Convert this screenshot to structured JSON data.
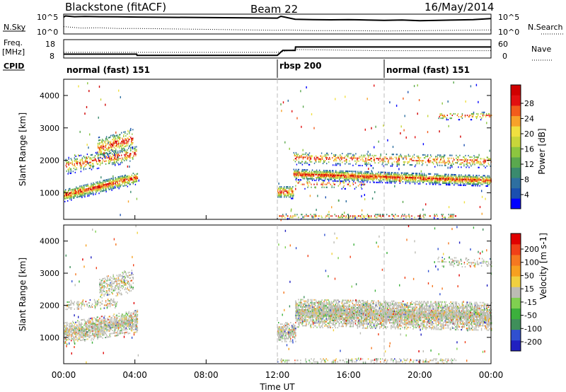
{
  "header": {
    "station": "Blackstone (fitACF)",
    "beam": "Beam 22",
    "date": "16/May/2014"
  },
  "top_panels": {
    "nsky_label": "N.Sky",
    "nsearch_label": "N.Search",
    "noise_ticks": [
      "10^5",
      "10^0"
    ],
    "freq_label": "Freq.",
    "freq_unit": "[MHz]",
    "freq_ticks": [
      "8",
      "18"
    ],
    "nave_ticks": [
      "60",
      "0"
    ],
    "nave_label": "Nave",
    "cpid_label": "CPID",
    "cpid_segments": [
      {
        "label": "normal (fast) 151",
        "start_h": 0,
        "end_h": 12
      },
      {
        "label": "rbsp 200",
        "start_h": 12,
        "end_h": 18
      },
      {
        "label": "normal (fast) 151",
        "start_h": 18,
        "end_h": 24
      }
    ],
    "noise_sky_trace": [
      [
        0,
        4.6
      ],
      [
        0.1,
        4.9
      ],
      [
        0.6,
        4.7
      ],
      [
        1.2,
        4.75
      ],
      [
        2,
        4.7
      ],
      [
        3,
        4.65
      ],
      [
        4.1,
        4.6
      ],
      [
        12,
        4.3
      ],
      [
        12.2,
        4.8
      ],
      [
        13,
        4.0
      ],
      [
        14,
        3.9
      ],
      [
        15,
        3.85
      ],
      [
        16,
        3.9
      ],
      [
        17,
        3.8
      ],
      [
        18,
        3.7
      ],
      [
        19,
        3.8
      ],
      [
        20,
        3.6
      ],
      [
        21,
        3.7
      ],
      [
        22,
        3.8
      ],
      [
        23,
        3.9
      ],
      [
        24,
        4.2
      ]
    ],
    "noise_search_trace": [
      [
        0,
        2.0
      ],
      [
        1,
        1.6
      ],
      [
        2,
        1.7
      ],
      [
        3,
        1.5
      ],
      [
        4.1,
        1.5
      ],
      [
        12,
        1.0
      ],
      [
        12.5,
        1.1
      ],
      [
        14,
        0.9
      ],
      [
        16,
        0.9
      ],
      [
        18,
        0.8
      ],
      [
        20,
        0.9
      ],
      [
        22,
        1.0
      ],
      [
        24,
        1.1
      ]
    ],
    "freq_trace": [
      [
        0,
        10.3
      ],
      [
        4.1,
        10.3
      ],
      [
        4.12,
        9.6
      ],
      [
        12,
        9.6
      ],
      [
        12.3,
        12.5
      ],
      [
        13,
        12.5
      ],
      [
        13.02,
        14.5
      ],
      [
        24,
        14.5
      ]
    ],
    "nave_trace": [
      [
        0,
        20
      ],
      [
        4.1,
        20
      ],
      [
        12,
        20
      ],
      [
        13,
        30
      ],
      [
        18,
        26
      ],
      [
        24,
        26
      ]
    ]
  },
  "chart_data": [
    {
      "type": "heatmap",
      "title": "",
      "ylabel": "Slant Range [km]",
      "xlabel": "",
      "ylim": [
        180,
        4500
      ],
      "yticks": [
        1000,
        2000,
        3000,
        4000
      ],
      "xlim": [
        0,
        24
      ],
      "colorbar": {
        "label": "Power [dB]",
        "ticks": [
          "4",
          "8",
          "12",
          "16",
          "20",
          "24",
          "28"
        ],
        "colors": [
          "#0000ff",
          "#1a4fb0",
          "#2e6fa0",
          "#3a8a6e",
          "#5aa84e",
          "#8cc63f",
          "#c8d63a",
          "#f0e040",
          "#f7a22a",
          "#f25c1c",
          "#e21010",
          "#d00000"
        ]
      },
      "regions": [
        {
          "start_h": 0.0,
          "end_h": 4.15,
          "center_start": 900,
          "center_end": 1450,
          "width": 200,
          "strength": 0.9
        },
        {
          "start_h": 0.1,
          "end_h": 4.1,
          "center_start": 1800,
          "center_end": 2200,
          "width": 250,
          "strength": 0.4
        },
        {
          "start_h": 1.9,
          "end_h": 3.9,
          "center_start": 2350,
          "center_end": 2650,
          "width": 350,
          "strength": 0.5
        },
        {
          "start_h": 12.0,
          "end_h": 12.9,
          "center_start": 1000,
          "center_end": 1000,
          "width": 200,
          "strength": 0.8
        },
        {
          "start_h": 12.9,
          "end_h": 24.0,
          "center_start": 1550,
          "center_end": 1350,
          "width": 170,
          "strength": 0.95
        },
        {
          "start_h": 12.9,
          "end_h": 24.0,
          "center_start": 2050,
          "center_end": 1950,
          "width": 200,
          "strength": 0.35
        },
        {
          "start_h": 13.0,
          "end_h": 17.0,
          "center_start": 1250,
          "center_end": 1250,
          "width": 150,
          "strength": 0.2
        },
        {
          "start_h": 21.0,
          "end_h": 24.0,
          "center_start": 3350,
          "center_end": 3350,
          "width": 120,
          "strength": 0.3
        },
        {
          "start_h": 12.0,
          "end_h": 22.0,
          "center_start": 250,
          "center_end": 250,
          "width": 80,
          "strength": 0.3
        }
      ]
    },
    {
      "type": "heatmap",
      "title": "",
      "ylabel": "Slant Range [km]",
      "xlabel": "Time UT",
      "ylim": [
        180,
        4500
      ],
      "yticks": [
        1000,
        2000,
        3000,
        4000
      ],
      "xlim": [
        0,
        24
      ],
      "xticks": [
        "00:00",
        "04:00",
        "08:00",
        "12:00",
        "16:00",
        "20:00",
        "00:00"
      ],
      "colorbar": {
        "label": "Velocity [m s-1]",
        "ticks": [
          "200",
          "100",
          "50",
          "15",
          "-15",
          "-50",
          "-100",
          "-200"
        ],
        "colors": [
          "#2020c0",
          "#3050d0",
          "#3f8f5a",
          "#3cb03c",
          "#80d050",
          "#bcbcb4",
          "#f0d040",
          "#f7a020",
          "#f57820",
          "#f04018",
          "#e00000"
        ]
      },
      "regions": [
        {
          "start_h": 0.0,
          "end_h": 4.15,
          "center_start": 1100,
          "center_end": 1500,
          "width": 350,
          "strength": 0.85
        },
        {
          "start_h": 0.1,
          "end_h": 3.0,
          "center_start": 2000,
          "center_end": 2050,
          "width": 150,
          "strength": 0.4
        },
        {
          "start_h": 2.0,
          "end_h": 3.9,
          "center_start": 2500,
          "center_end": 2750,
          "width": 350,
          "strength": 0.5
        },
        {
          "start_h": 12.0,
          "end_h": 13.0,
          "center_start": 1150,
          "center_end": 1150,
          "width": 300,
          "strength": 0.85
        },
        {
          "start_h": 13.0,
          "end_h": 24.0,
          "center_start": 1750,
          "center_end": 1650,
          "width": 450,
          "strength": 0.95
        },
        {
          "start_h": 21.0,
          "end_h": 24.0,
          "center_start": 3350,
          "center_end": 3300,
          "width": 150,
          "strength": 0.3
        },
        {
          "start_h": 12.0,
          "end_h": 22.0,
          "center_start": 250,
          "center_end": 250,
          "width": 80,
          "strength": 0.3
        }
      ]
    }
  ]
}
